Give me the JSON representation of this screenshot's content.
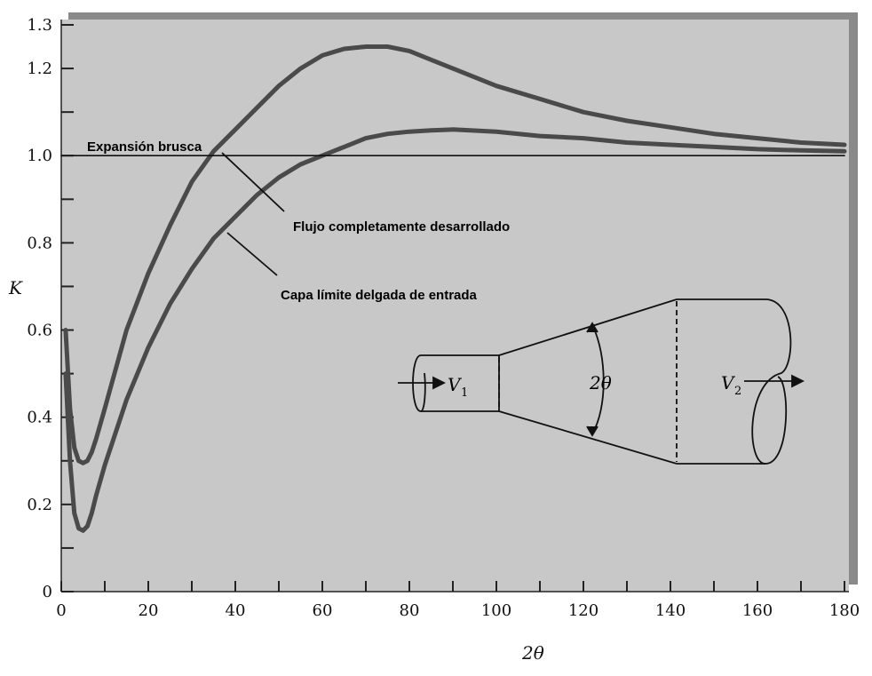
{
  "chart_data": {
    "type": "line",
    "xlabel": "2θ",
    "ylabel": "K",
    "xlim": [
      0,
      180
    ],
    "ylim": [
      0,
      1.3
    ],
    "x_ticks": [
      0,
      20,
      40,
      60,
      80,
      100,
      120,
      140,
      160,
      180
    ],
    "y_ticks": [
      0,
      0.2,
      0.4,
      0.6,
      0.8,
      1.0,
      1.2,
      1.3
    ],
    "x_tick_labels": [
      "0",
      "20",
      "40",
      "60",
      "80",
      "100",
      "120",
      "140",
      "160",
      "180"
    ],
    "y_tick_labels": [
      "0",
      "0.2",
      "0.4",
      "0.6",
      "0.8",
      "1.0",
      "1.2",
      "1.3"
    ],
    "grid": false,
    "background_color": "#c8c8c8",
    "series_color": "#4a4a4a",
    "series": [
      {
        "name": "Flujo completamente desarrollado",
        "x": [
          1,
          2,
          3,
          4,
          5,
          6,
          7,
          8,
          10,
          15,
          20,
          25,
          30,
          35,
          40,
          45,
          50,
          55,
          60,
          65,
          70,
          75,
          80,
          85,
          90,
          100,
          110,
          120,
          130,
          140,
          150,
          160,
          170,
          180
        ],
        "y": [
          0.6,
          0.42,
          0.33,
          0.3,
          0.295,
          0.3,
          0.32,
          0.35,
          0.42,
          0.6,
          0.73,
          0.84,
          0.94,
          1.01,
          1.06,
          1.11,
          1.16,
          1.2,
          1.23,
          1.245,
          1.25,
          1.25,
          1.24,
          1.22,
          1.2,
          1.16,
          1.13,
          1.1,
          1.08,
          1.065,
          1.05,
          1.04,
          1.03,
          1.025
        ]
      },
      {
        "name": "Capa límite delgada de entrada",
        "x": [
          1,
          2,
          3,
          4,
          5,
          6,
          7,
          8,
          10,
          15,
          20,
          25,
          30,
          35,
          40,
          45,
          50,
          55,
          60,
          65,
          70,
          75,
          80,
          85,
          90,
          100,
          110,
          120,
          130,
          140,
          150,
          160,
          170,
          180
        ],
        "y": [
          0.5,
          0.3,
          0.18,
          0.145,
          0.14,
          0.15,
          0.18,
          0.22,
          0.29,
          0.44,
          0.56,
          0.66,
          0.74,
          0.81,
          0.86,
          0.91,
          0.95,
          0.98,
          1.0,
          1.02,
          1.04,
          1.05,
          1.055,
          1.058,
          1.06,
          1.055,
          1.045,
          1.04,
          1.03,
          1.025,
          1.02,
          1.015,
          1.012,
          1.01
        ]
      },
      {
        "name": "Expansión brusca",
        "x": [
          0,
          180
        ],
        "y": [
          1.0,
          1.0
        ]
      }
    ],
    "annotations": [
      {
        "text": "Expansión brusca",
        "x": 7,
        "y": 1.02
      },
      {
        "text": "Flujo completamente desarrollado",
        "x": 53,
        "y": 0.85
      },
      {
        "text": "Capa límite delgada de entrada",
        "x": 51,
        "y": 0.68
      }
    ],
    "inset": {
      "v1_label": "V",
      "v1_sub": "1",
      "v2_label": "V",
      "v2_sub": "2",
      "angle_label": "2θ"
    }
  }
}
